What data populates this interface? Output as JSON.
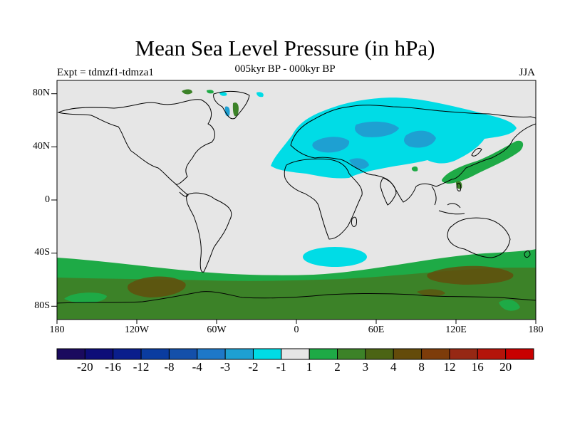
{
  "title": "Mean Sea Level Pressure (in hPa)",
  "subtitle": "005kyr BP - 000kyr BP",
  "left_label": "Expt = tdmzf1-tdmza1",
  "right_label": "JJA",
  "lat_labels": [
    "80N",
    "40N",
    "0",
    "40S",
    "80S"
  ],
  "lon_labels": [
    "180",
    "120W",
    "60W",
    "0",
    "60E",
    "120E",
    "180"
  ],
  "colorbar": {
    "colors": [
      "#1a0a5e",
      "#0d0d78",
      "#0a1e8c",
      "#0a3ca0",
      "#1450aa",
      "#1e78c8",
      "#1ea0d2",
      "#00dce6",
      "#e6e6e6",
      "#1eaa46",
      "#3c8228",
      "#4b6414",
      "#644b0a",
      "#7d3c0a",
      "#962814",
      "#b4140a",
      "#c80000"
    ],
    "labels": [
      "-20",
      "-16",
      "-12",
      "-8",
      "-4",
      "-3",
      "-2",
      "-1",
      "1",
      "2",
      "3",
      "4",
      "8",
      "12",
      "16",
      "20"
    ]
  },
  "colors": {
    "background": "#e6e6e6",
    "coast": "#000000"
  }
}
